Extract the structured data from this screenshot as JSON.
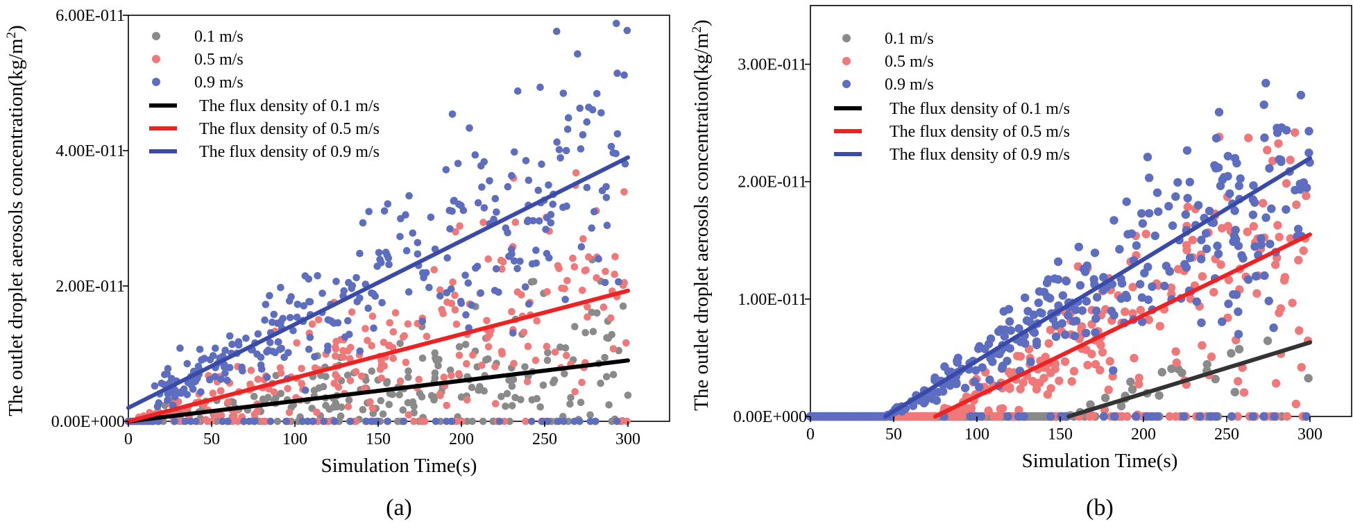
{
  "chart_data": [
    {
      "panel_label": "(a)",
      "type": "scatter",
      "title": "",
      "xlabel": "Simulation Time(s)",
      "ylabel": "The outlet droplet aerosols concentration(kg/m",
      "ylabel_sup": "2",
      "ylabel_end": ")",
      "xlim": [
        0,
        325
      ],
      "ylim": [
        0,
        6e-11
      ],
      "x_ticks": [
        0,
        50,
        100,
        150,
        200,
        250,
        300
      ],
      "x_tick_labels": [
        "0",
        "50",
        "100",
        "150",
        "200",
        "250",
        "300"
      ],
      "y_ticks": [
        0,
        2e-11,
        4e-11,
        6e-11
      ],
      "y_tick_labels": [
        "0.00E+000",
        "2.00E-011",
        "4.00E-011",
        "6.00E-011"
      ],
      "legend_position": "top-left",
      "series": [
        {
          "name": "0.1 m/s",
          "kind": "scatter",
          "color": "#8a8a8a",
          "onset": 5,
          "t_end": 300,
          "slope": 3e-14,
          "intercept": 0,
          "spread": 0.85,
          "seed": 11,
          "n": 240
        },
        {
          "name": "0.5 m/s",
          "kind": "scatter",
          "color": "#f07878",
          "onset": 5,
          "t_end": 300,
          "slope": 6.4e-14,
          "intercept": 0,
          "spread": 0.55,
          "seed": 23,
          "n": 260
        },
        {
          "name": "0.9 m/s",
          "kind": "scatter",
          "color": "#5d6dc0",
          "onset": 15,
          "t_end": 300,
          "slope": 1.24e-13,
          "intercept": 2e-12,
          "spread": 0.28,
          "seed": 37,
          "n": 300
        },
        {
          "name": "The flux density of 0.1 m/s",
          "kind": "line",
          "color": "#000000",
          "x": [
            0,
            300
          ],
          "y": [
            0,
            9e-12
          ]
        },
        {
          "name": "The flux density of 0.5 m/s",
          "kind": "line",
          "color": "#ee2222",
          "x": [
            0,
            300
          ],
          "y": [
            0,
            1.93e-11
          ]
        },
        {
          "name": "The flux density of 0.9 m/s",
          "kind": "line",
          "color": "#3a4aa8",
          "x": [
            0,
            300
          ],
          "y": [
            2e-12,
            3.9e-11
          ]
        }
      ]
    },
    {
      "panel_label": "(b)",
      "type": "scatter",
      "title": "",
      "xlabel": "Simulation Time(s)",
      "ylabel": "The outlet droplet aerosols concentration(kg/m",
      "ylabel_sup": "2",
      "ylabel_end": ")",
      "xlim": [
        0,
        325
      ],
      "ylim": [
        0,
        3.5e-11
      ],
      "x_ticks": [
        0,
        50,
        100,
        150,
        200,
        250,
        300
      ],
      "x_tick_labels": [
        "0",
        "50",
        "100",
        "150",
        "200",
        "250",
        "300"
      ],
      "y_ticks": [
        0,
        1e-11,
        2e-11,
        3e-11
      ],
      "y_tick_labels": [
        "0.00E+000",
        "1.00E-011",
        "2.00E-011",
        "3.00E-011"
      ],
      "legend_position": "top-left",
      "series": [
        {
          "name": "0.1 m/s",
          "kind": "scatter",
          "color": "#8a8a8a",
          "onset": 155,
          "t_end": 300,
          "slope": 4.3e-14,
          "intercept": -6.6e-12,
          "spread": 0.45,
          "seed": 53,
          "n": 24
        },
        {
          "name": "0.5 m/s",
          "kind": "scatter",
          "color": "#f07878",
          "onset": 75,
          "t_end": 300,
          "slope": 6.9e-14,
          "intercept": -5.2e-12,
          "spread": 0.45,
          "seed": 61,
          "n": 220
        },
        {
          "name": "0.9 m/s",
          "kind": "scatter",
          "color": "#5d6dc0",
          "onset": 45,
          "t_end": 300,
          "slope": 8.4e-14,
          "intercept": -3.8e-12,
          "spread": 0.25,
          "seed": 79,
          "n": 300
        },
        {
          "name": "The flux density of 0.1 m/s",
          "kind": "line",
          "color": "#333333",
          "x": [
            155,
            300
          ],
          "y": [
            0,
            6.3e-12
          ]
        },
        {
          "name": "The flux density of 0.5 m/s",
          "kind": "line",
          "color": "#ee2222",
          "x": [
            75,
            300
          ],
          "y": [
            0,
            1.55e-11
          ]
        },
        {
          "name": "The flux density of 0.9 m/s",
          "kind": "line",
          "color": "#3a4aa8",
          "x": [
            45,
            300
          ],
          "y": [
            0,
            2.2e-11
          ]
        }
      ]
    }
  ]
}
